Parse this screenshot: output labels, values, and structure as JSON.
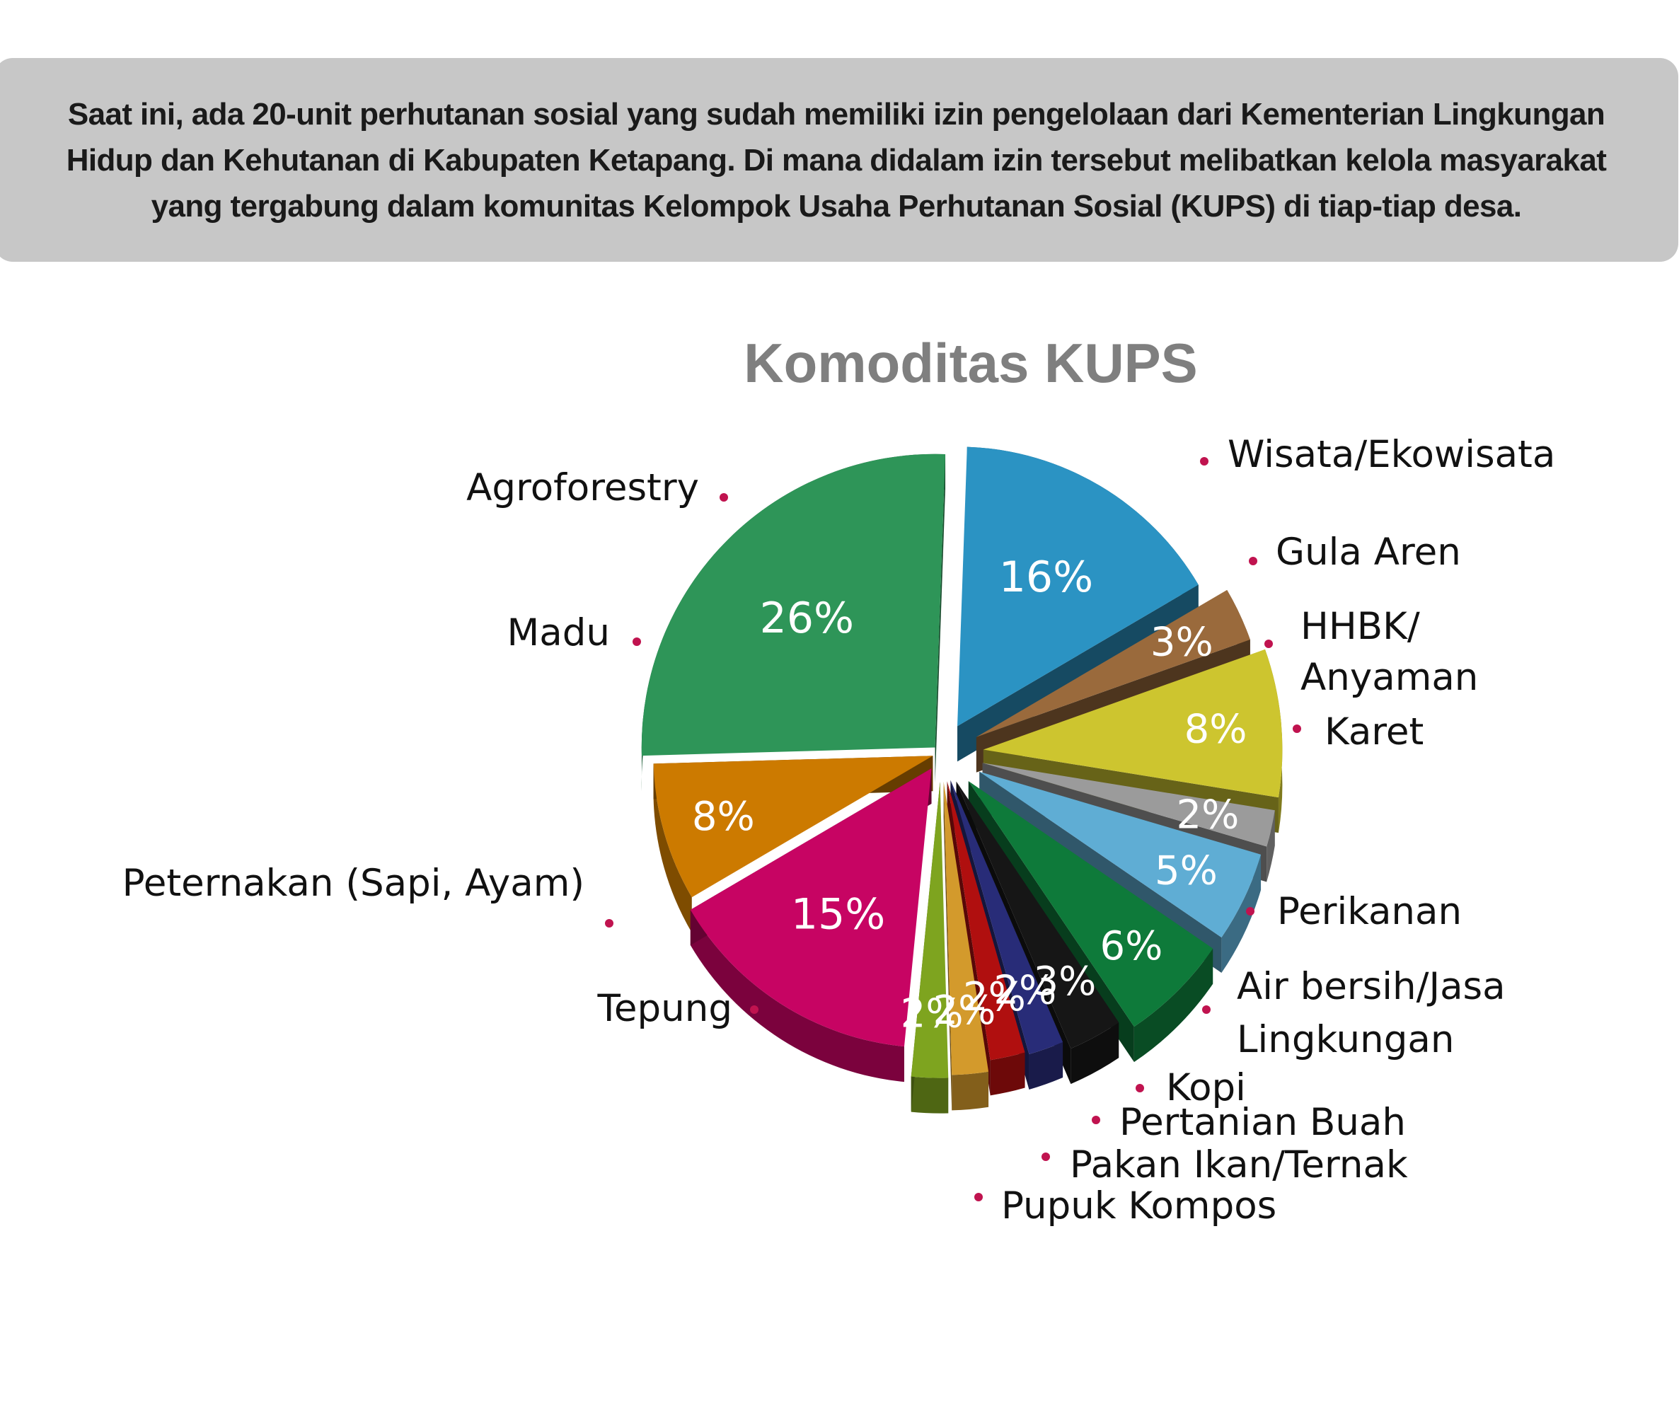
{
  "intro": {
    "text": "Saat ini, ada 20-unit perhutanan sosial yang sudah memiliki izin pengelolaan dari Kementerian Lingkungan Hidup dan Kehutanan di Kabupaten Ketapang. Di mana didalam izin tersebut melibatkan kelola masyarakat yang tergabung dalam komunitas Kelompok Usaha Perhutanan Sosial (KUPS) di tiap-tiap desa."
  },
  "chart_data": {
    "type": "pie",
    "title": "Komoditas KUPS",
    "slices": [
      {
        "label": "Wisata/Ekowisata",
        "value": 16,
        "value_label": "16%",
        "color": "#2b93c3"
      },
      {
        "label": "Gula Aren",
        "value": 3,
        "value_label": "3%",
        "color": "#9a6a3c"
      },
      {
        "label": "HHBK/ Anyaman",
        "value": 8,
        "value_label": "8%",
        "color": "#cdc52f"
      },
      {
        "label": "Karet",
        "value": 2,
        "value_label": "2%",
        "color": "#9b9b9b"
      },
      {
        "label": "Perikanan",
        "value": 5,
        "value_label": "5%",
        "color": "#5fadd4"
      },
      {
        "label": "Air bersih/Jasa Lingkungan",
        "value": 6,
        "value_label": "6%",
        "color": "#0e7a3a"
      },
      {
        "label": "Kopi",
        "value": 3,
        "value_label": "3%",
        "color": "#161616"
      },
      {
        "label": "Pertanian Buah",
        "value": 2,
        "value_label": "2%",
        "color": "#282c78"
      },
      {
        "label": "Pakan Ikan/Ternak",
        "value": 2,
        "value_label": "2%",
        "color": "#b00f0f"
      },
      {
        "label": "Pupuk Kompos",
        "value": 2,
        "value_label": "2%",
        "color": "#d39a2c"
      },
      {
        "label": "Tepung",
        "value": 2,
        "value_label": "2%",
        "color": "#7ea41f"
      },
      {
        "label": "Peternakan (Sapi, Ayam)",
        "value": 15,
        "value_label": "15%",
        "color": "#c70463"
      },
      {
        "label": "Madu",
        "value": 8,
        "value_label": "8%",
        "color": "#cc7a00"
      },
      {
        "label": "Agroforestry",
        "value": 26,
        "value_label": "26%",
        "color": "#2e9558"
      }
    ],
    "legend_bullet_color": "#c0134f"
  }
}
